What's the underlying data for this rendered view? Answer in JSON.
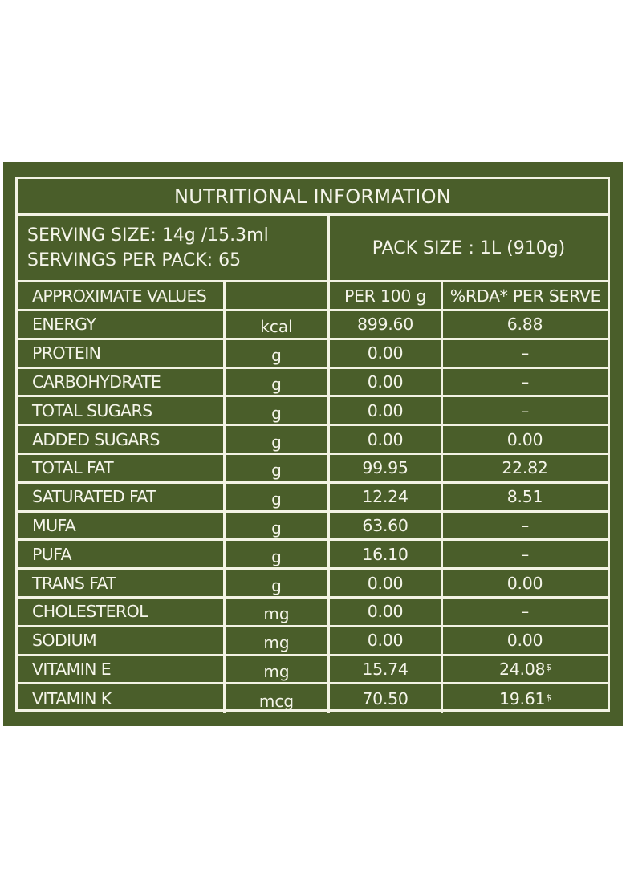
{
  "title": "NUTRITIONAL INFORMATION",
  "serving_size": "SERVING SIZE: 14g /15.3ml",
  "servings_per_pack": "SERVINGS PER PACK: 65",
  "pack_size": "PACK SIZE : 1L (910g)",
  "colors": {
    "background": "#4a5e2a",
    "text": "#f5f5ea",
    "border": "#f3f3e4"
  },
  "headers": {
    "nutrient": "APPROXIMATE VALUES",
    "unit": "",
    "per100g": "PER 100 g",
    "rda": "%RDA* PER SERVE"
  },
  "rows": [
    {
      "name": "ENERGY",
      "unit": "kcal",
      "per100g": "899.60",
      "rda": "6.88",
      "rda_mark": ""
    },
    {
      "name": "PROTEIN",
      "unit": "g",
      "per100g": "0.00",
      "rda": "–",
      "rda_mark": ""
    },
    {
      "name": "CARBOHYDRATE",
      "unit": "g",
      "per100g": "0.00",
      "rda": "–",
      "rda_mark": ""
    },
    {
      "name": "TOTAL SUGARS",
      "unit": "g",
      "per100g": "0.00",
      "rda": "–",
      "rda_mark": ""
    },
    {
      "name": "ADDED SUGARS",
      "unit": "g",
      "per100g": "0.00",
      "rda": "0.00",
      "rda_mark": ""
    },
    {
      "name": "TOTAL FAT",
      "unit": "g",
      "per100g": "99.95",
      "rda": "22.82",
      "rda_mark": ""
    },
    {
      "name": "SATURATED FAT",
      "unit": "g",
      "per100g": "12.24",
      "rda": "8.51",
      "rda_mark": ""
    },
    {
      "name": "MUFA",
      "unit": "g",
      "per100g": "63.60",
      "rda": "–",
      "rda_mark": ""
    },
    {
      "name": "PUFA",
      "unit": "g",
      "per100g": "16.10",
      "rda": "–",
      "rda_mark": ""
    },
    {
      "name": "TRANS FAT",
      "unit": "g",
      "per100g": "0.00",
      "rda": "0.00",
      "rda_mark": ""
    },
    {
      "name": "CHOLESTEROL",
      "unit": "mg",
      "per100g": "0.00",
      "rda": "–",
      "rda_mark": ""
    },
    {
      "name": "SODIUM",
      "unit": "mg",
      "per100g": "0.00",
      "rda": "0.00",
      "rda_mark": ""
    },
    {
      "name": "VITAMIN E",
      "unit": "mg",
      "per100g": "15.74",
      "rda": "24.08",
      "rda_mark": "$"
    },
    {
      "name": "VITAMIN K",
      "unit": "mcg",
      "per100g": "70.50",
      "rda": "19.61",
      "rda_mark": "$"
    }
  ]
}
